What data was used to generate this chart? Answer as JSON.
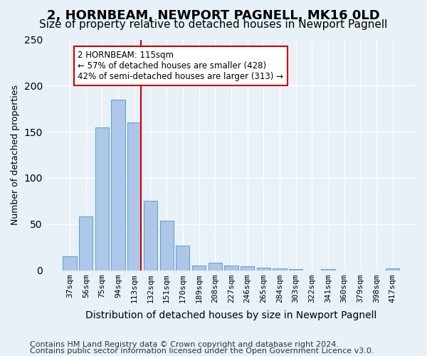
{
  "title": "2, HORNBEAM, NEWPORT PAGNELL, MK16 0LD",
  "subtitle": "Size of property relative to detached houses in Newport Pagnell",
  "xlabel": "Distribution of detached houses by size in Newport Pagnell",
  "ylabel": "Number of detached properties",
  "categories": [
    "37sqm",
    "56sqm",
    "75sqm",
    "94sqm",
    "113sqm",
    "132sqm",
    "151sqm",
    "170sqm",
    "189sqm",
    "208sqm",
    "227sqm",
    "246sqm",
    "265sqm",
    "284sqm",
    "303sqm",
    "322sqm",
    "341sqm",
    "360sqm",
    "379sqm",
    "398sqm",
    "417sqm"
  ],
  "values": [
    15,
    58,
    155,
    185,
    160,
    75,
    54,
    27,
    5,
    8,
    5,
    4,
    3,
    2,
    1,
    0,
    1,
    0,
    0,
    0,
    2
  ],
  "bar_color": "#aec6e8",
  "bar_edge_color": "#5a9fd4",
  "bg_color": "#e8f0f8",
  "grid_color": "#ffffff",
  "vline_x": 4.42,
  "vline_color": "#cc0000",
  "annotation_text": "2 HORNBEAM: 115sqm\n← 57% of detached houses are smaller (428)\n42% of semi-detached houses are larger (313) →",
  "annotation_box_color": "#ffffff",
  "annotation_box_edge": "#cc0000",
  "footer1": "Contains HM Land Registry data © Crown copyright and database right 2024.",
  "footer2": "Contains public sector information licensed under the Open Government Licence v3.0.",
  "ylim": [
    0,
    250
  ],
  "title_fontsize": 13,
  "subtitle_fontsize": 11,
  "xlabel_fontsize": 10,
  "ylabel_fontsize": 9,
  "tick_fontsize": 8,
  "footer_fontsize": 8
}
